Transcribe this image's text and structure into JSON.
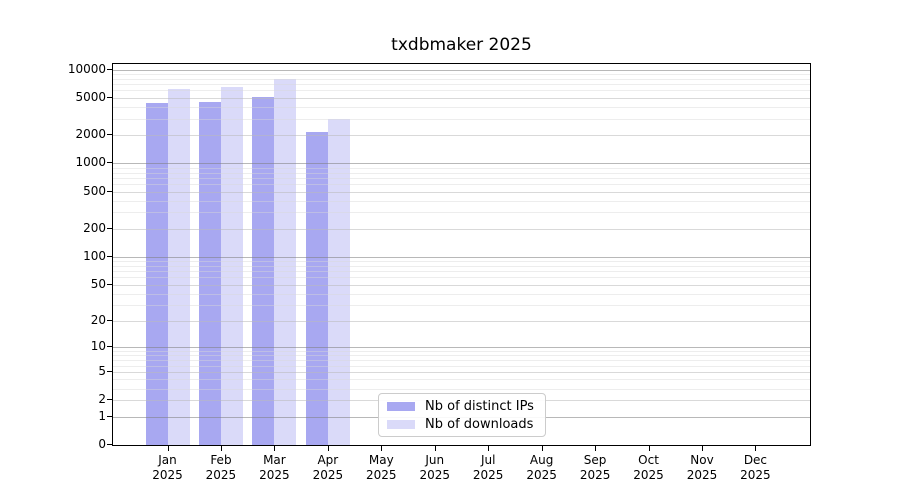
{
  "title": "txdbmaker 2025",
  "legend": {
    "items": [
      {
        "label": "Nb of distinct IPs",
        "color": "#a8a8f1"
      },
      {
        "label": "Nb of downloads",
        "color": "#dadaf9"
      }
    ]
  },
  "chart_data": {
    "type": "bar",
    "title": "txdbmaker 2025",
    "categories": [
      "Jan",
      "Feb",
      "Mar",
      "Apr",
      "May",
      "Jun",
      "Jul",
      "Aug",
      "Sep",
      "Oct",
      "Nov",
      "Dec"
    ],
    "year_label": "2025",
    "series": [
      {
        "name": "Nb of distinct IPs",
        "color": "#a8a8f1",
        "values": [
          4450,
          4500,
          5150,
          2180,
          0,
          0,
          0,
          0,
          0,
          0,
          0,
          0
        ]
      },
      {
        "name": "Nb of downloads",
        "color": "#dadaf9",
        "values": [
          6250,
          6600,
          7900,
          2980,
          0,
          0,
          0,
          0,
          0,
          0,
          0,
          0
        ]
      }
    ],
    "yscale": "log1p",
    "yticks": [
      0,
      1,
      2,
      5,
      10,
      20,
      50,
      100,
      200,
      500,
      1000,
      2000,
      5000,
      10000
    ],
    "ylim": [
      0,
      11300
    ],
    "xlabel": "",
    "ylabel": "",
    "grid": "horizontal major and minor, drawn over bars",
    "legend_position": "lower center"
  }
}
